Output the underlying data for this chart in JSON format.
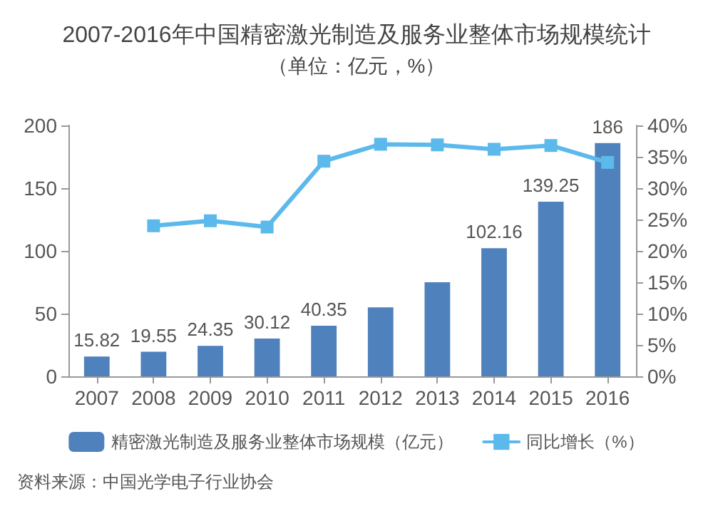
{
  "chart_data": {
    "type": "bar",
    "title": "2007-2016年中国精密激光制造及服务业整体市场规模统计",
    "subtitle": "（单位：亿元，%）",
    "categories": [
      "2007",
      "2008",
      "2009",
      "2010",
      "2011",
      "2012",
      "2013",
      "2014",
      "2015",
      "2016"
    ],
    "series": [
      {
        "name": "精密激光制造及服务业整体市场规模（亿元）",
        "color": "#4f81bd",
        "values": [
          15.82,
          19.55,
          24.35,
          30.12,
          40.35,
          55,
          75,
          102.16,
          139.25,
          186
        ],
        "value_labels": [
          "15.82",
          "19.55",
          "24.35",
          "30.12",
          "40.35",
          null,
          null,
          "102.16",
          "139.25",
          "186"
        ]
      },
      {
        "name": "同比增长（%）",
        "type": "line",
        "axis": "y2",
        "color": "#5bb9ec",
        "values": [
          null,
          24.0,
          24.8,
          23.8,
          34.3,
          37.0,
          36.9,
          36.2,
          36.8,
          34.1
        ]
      }
    ],
    "ylim": [
      0,
      200
    ],
    "yticks": [
      0,
      50,
      100,
      150,
      200
    ],
    "y2lim": [
      0,
      40
    ],
    "y2ticks": [
      {
        "value": 0,
        "label": "0%"
      },
      {
        "value": 5,
        "label": "5%"
      },
      {
        "value": 10,
        "label": "10%"
      },
      {
        "value": 15,
        "label": "15%"
      },
      {
        "value": 20,
        "label": "20%"
      },
      {
        "value": 25,
        "label": "25%"
      },
      {
        "value": 30,
        "label": "30%"
      },
      {
        "value": 35,
        "label": "35%"
      },
      {
        "value": 40,
        "label": "40%"
      }
    ],
    "marker": "square",
    "line_style": "solid",
    "grid": false,
    "legend": "bottom",
    "annotations": [
      "资料来源：中国光学电子行业协会"
    ]
  }
}
